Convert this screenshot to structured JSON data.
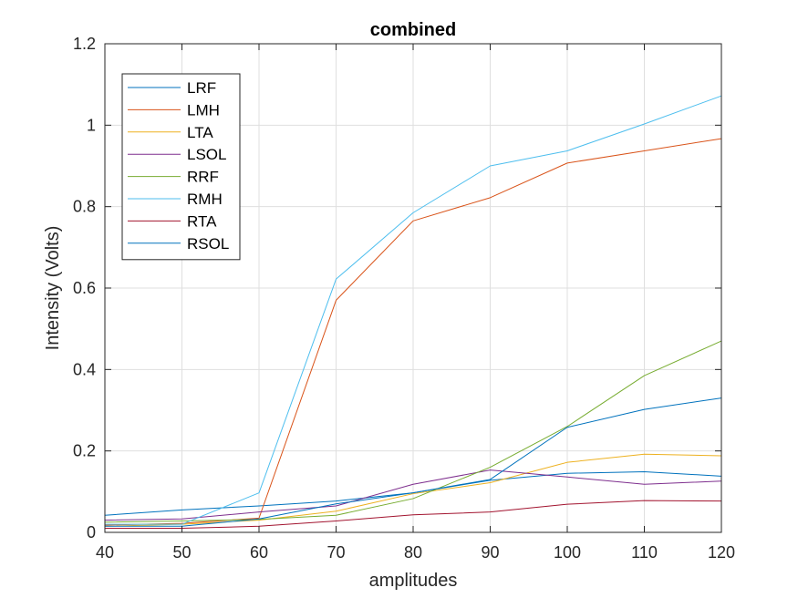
{
  "chart_data": {
    "type": "line",
    "title": "combined",
    "xlabel": "amplitudes",
    "ylabel": "Intensity (Volts)",
    "x": [
      40,
      50,
      60,
      70,
      80,
      90,
      100,
      110,
      120
    ],
    "xlim": [
      40,
      120
    ],
    "ylim": [
      0,
      1.2
    ],
    "xticks": [
      40,
      50,
      60,
      70,
      80,
      90,
      100,
      110,
      120
    ],
    "yticks": [
      0,
      0.2,
      0.4,
      0.6,
      0.8,
      1,
      1.2
    ],
    "xtick_labels": [
      "40",
      "50",
      "60",
      "70",
      "80",
      "90",
      "100",
      "110",
      "120"
    ],
    "ytick_labels": [
      "0",
      "0.2",
      "0.4",
      "0.6",
      "0.8",
      "1",
      "1.2"
    ],
    "grid": true,
    "legend_position": "top-left",
    "series": [
      {
        "name": "LRF",
        "color": "#0072BD",
        "values": [
          0.042,
          0.055,
          0.065,
          0.077,
          0.097,
          0.128,
          0.145,
          0.149,
          0.138
        ]
      },
      {
        "name": "LMH",
        "color": "#D95319",
        "values": [
          0.018,
          0.022,
          0.035,
          0.57,
          0.765,
          0.822,
          0.907,
          0.937,
          0.967
        ]
      },
      {
        "name": "LTA",
        "color": "#EDB120",
        "values": [
          0.015,
          0.02,
          0.03,
          0.052,
          0.095,
          0.122,
          0.172,
          0.192,
          0.188
        ]
      },
      {
        "name": "LSOL",
        "color": "#7E2F8E",
        "values": [
          0.03,
          0.033,
          0.05,
          0.065,
          0.118,
          0.153,
          0.136,
          0.118,
          0.126
        ]
      },
      {
        "name": "RRF",
        "color": "#77AC30",
        "values": [
          0.025,
          0.028,
          0.032,
          0.042,
          0.083,
          0.16,
          0.26,
          0.385,
          0.47
        ]
      },
      {
        "name": "RMH",
        "color": "#4DBEEE",
        "values": [
          0.02,
          0.02,
          0.097,
          0.622,
          0.785,
          0.9,
          0.937,
          1.003,
          1.072
        ]
      },
      {
        "name": "RTA",
        "color": "#A2142F",
        "values": [
          0.01,
          0.01,
          0.015,
          0.028,
          0.043,
          0.05,
          0.069,
          0.078,
          0.077
        ]
      },
      {
        "name": "RSOL",
        "color": "#0072BD",
        "values": [
          0.015,
          0.015,
          0.033,
          0.07,
          0.097,
          0.13,
          0.258,
          0.302,
          0.33
        ]
      }
    ]
  }
}
